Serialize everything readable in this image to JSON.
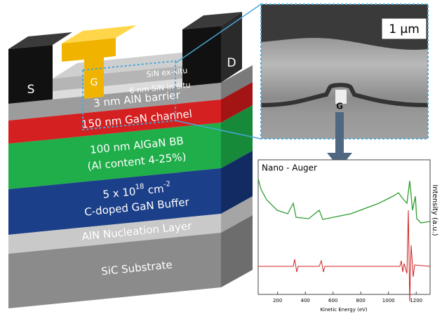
{
  "stack": {
    "layers": [
      {
        "lines": [
          "3 nm AlN barrier"
        ]
      },
      {
        "lines": [
          "150 nm GaN channel"
        ]
      },
      {
        "lines": [
          "100 nm AlGaN BB",
          "(Al content 4-25%)"
        ]
      },
      {
        "lines": [
          [
            "5 x 10",
            "18",
            " cm",
            "-2"
          ],
          "C-doped GaN Buffer"
        ]
      },
      {
        "lines": [
          "AlN Nucleation Layer"
        ]
      },
      {
        "lines": [
          "SiC Substrate"
        ]
      }
    ],
    "source": "S",
    "drain": "D",
    "gate": "G",
    "sin_ex_situ": "SiN ex-situ",
    "sin_in_situ": "6 nm SiN in-situ"
  },
  "sem": {
    "scale": "1 µm",
    "gate": "G"
  },
  "spectrum": {
    "title": "Nano - Auger",
    "ylabel": "Intensity (a.u.)",
    "xlabel": "Kinetic Energy (eV)",
    "xlim": [
      60,
      1300
    ],
    "xticks": [
      200,
      400,
      600,
      800,
      1000,
      1200
    ]
  }
}
